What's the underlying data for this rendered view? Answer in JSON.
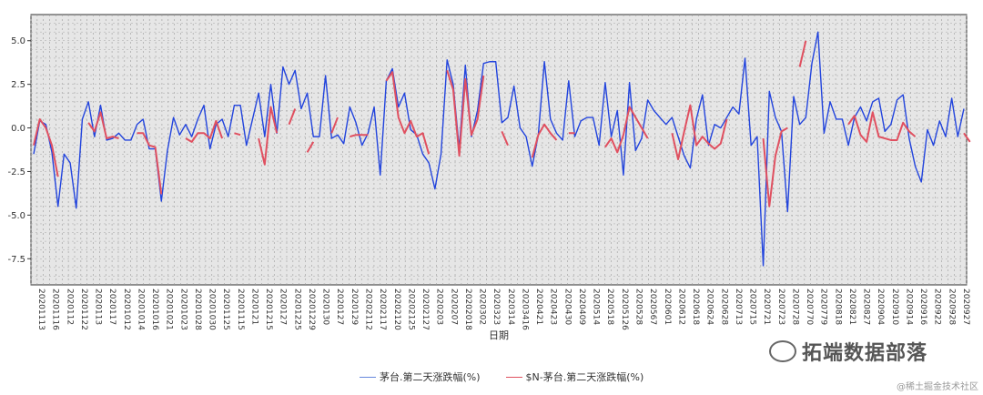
{
  "chart_data": {
    "type": "line",
    "xlabel": "日期",
    "ylabel": "",
    "ylim": [
      -9,
      6.5
    ],
    "yticks": [
      5.0,
      2.5,
      0.0,
      -2.5,
      -5.0,
      -7.5
    ],
    "ytick_labels": [
      "5.0",
      "2.5",
      "0.0",
      "-2.5",
      "-5.0",
      "-7.5"
    ],
    "tick_labels": [
      "20201113",
      "20201116",
      "2020112",
      "20201122",
      "2020113",
      "2020117",
      "20201012",
      "20201014",
      "20201016",
      "20201021",
      "20201023",
      "20201028",
      "20201030",
      "20201125",
      "20201115",
      "2020121",
      "20201215",
      "2020127",
      "20201225",
      "20201229",
      "2020130",
      "2020127",
      "2020129",
      "20202112",
      "20202117",
      "20202120",
      "20202125",
      "20202127",
      "2020203",
      "2020207",
      "20202018",
      "2020302",
      "2020323",
      "2020314",
      "20203416",
      "2020421",
      "2020423",
      "2020430",
      "2020409",
      "2020514",
      "2020518",
      "20205126",
      "2020528",
      "2020567",
      "2020601",
      "2020612",
      "2020618",
      "2020624",
      "2020628",
      "2020713",
      "2020715",
      "2020721",
      "2020723",
      "2020728",
      "2020770",
      "2020779",
      "2020818",
      "2020821",
      "2020827",
      "2020904",
      "2020910",
      "2020914",
      "2020916",
      "2020922",
      "2020928",
      "2020927"
    ],
    "grid": true,
    "legend_position": "bottom",
    "series": [
      {
        "name": "茅台.第二天涨跌幅(%)",
        "color": "#2244dd",
        "values": [
          -1.5,
          0.4,
          0.2,
          -1.4,
          -4.5,
          -1.5,
          -2.0,
          -4.6,
          0.5,
          1.5,
          -0.5,
          1.3,
          -0.7,
          -0.6,
          -0.3,
          -0.7,
          -0.7,
          0.2,
          0.5,
          -1.2,
          -1.2,
          -4.2,
          -1.3,
          0.6,
          -0.4,
          0.2,
          -0.5,
          0.5,
          1.3,
          -1.2,
          0.2,
          0.5,
          -0.5,
          1.3,
          1.3,
          -1.0,
          0.5,
          2.0,
          -0.5,
          2.5,
          -0.3,
          3.5,
          2.5,
          3.3,
          1.1,
          2.0,
          -0.5,
          -0.5,
          3.0,
          -0.6,
          -0.4,
          -0.9,
          1.2,
          0.3,
          -1.0,
          -0.3,
          1.2,
          -2.7,
          2.7,
          3.4,
          1.2,
          2.0,
          -0.1,
          -0.4,
          -1.5,
          -2.0,
          -3.5,
          -1.5,
          3.9,
          2.5,
          -1.2,
          3.6,
          -0.5,
          1.0,
          3.7,
          3.8,
          3.8,
          0.3,
          0.6,
          2.4,
          0.0,
          -0.5,
          -2.2,
          -0.4,
          3.8,
          0.5,
          -0.3,
          -0.7,
          2.7,
          -0.5,
          0.4,
          0.6,
          0.6,
          -1.0,
          2.6,
          -0.5,
          1.0,
          -2.7,
          2.6,
          -1.3,
          -0.6,
          1.6,
          1.0,
          0.6,
          0.2,
          0.6,
          -0.5,
          -1.6,
          -2.3,
          0.5,
          1.9,
          -1.0,
          0.2,
          0.0,
          0.6,
          1.2,
          0.8,
          4.0,
          -1.0,
          -0.5,
          -7.9,
          2.1,
          0.6,
          -0.2,
          -4.8,
          1.8,
          0.2,
          0.6,
          3.7,
          5.5,
          -0.3,
          1.5,
          0.5,
          0.5,
          -1.0,
          0.6,
          1.2,
          0.4,
          1.5,
          1.7,
          -0.2,
          0.2,
          1.6,
          1.9,
          -0.6,
          -2.2,
          -3.1,
          -0.1,
          -1.0,
          0.4,
          -0.5,
          1.7,
          -0.5,
          1.1
        ]
      },
      {
        "name": "$N-茅台.第二天涨跌幅(%)",
        "color": "#e05060",
        "values": [
          -1.0,
          0.5,
          0.0,
          -1.0,
          -2.8,
          null,
          null,
          null,
          null,
          0.3,
          -0.2,
          0.9,
          -0.6,
          -0.5,
          -0.6,
          null,
          null,
          -0.3,
          -0.3,
          -1.0,
          -1.1,
          -3.8,
          null,
          null,
          null,
          -0.6,
          -0.8,
          -0.3,
          -0.3,
          -0.6,
          0.4,
          -0.6,
          null,
          -0.3,
          -0.4,
          null,
          null,
          -0.6,
          -2.1,
          1.2,
          -0.3,
          null,
          0.2,
          1.1,
          null,
          -1.4,
          -0.8,
          null,
          null,
          -0.3,
          0.6,
          null,
          -0.5,
          -0.4,
          -0.4,
          -0.4,
          null,
          null,
          2.7,
          3.2,
          0.6,
          -0.3,
          0.4,
          -0.5,
          -0.3,
          -1.5,
          null,
          null,
          3.3,
          2.2,
          -1.6,
          2.8,
          -0.4,
          0.5,
          3.0,
          null,
          null,
          -0.2,
          -1.0,
          null,
          null,
          null,
          -1.7,
          -0.4,
          0.2,
          -0.3,
          -0.7,
          null,
          -0.3,
          -0.3,
          null,
          null,
          null,
          null,
          -1.1,
          -0.6,
          -1.4,
          -0.4,
          1.2,
          0.6,
          0.0,
          -0.6,
          null,
          null,
          null,
          -0.3,
          -1.8,
          -0.2,
          1.3,
          -1.0,
          -0.5,
          -0.9,
          -1.2,
          -0.9,
          0.5,
          null,
          null,
          null,
          null,
          null,
          -0.6,
          -4.5,
          -1.6,
          -0.2,
          0.0,
          null,
          3.5,
          5.0,
          null,
          null,
          null,
          null,
          null,
          null,
          0.2,
          0.7,
          -0.4,
          -0.8,
          0.9,
          -0.5,
          -0.6,
          -0.7,
          -0.7,
          0.3,
          -0.2,
          -0.5,
          null,
          null,
          null,
          null,
          null,
          null,
          null,
          -0.3,
          -0.8
        ]
      }
    ]
  },
  "watermark": {
    "text": "拓端数据部落",
    "icon": "wechat-icon",
    "sub": "@稀土掘金技术社区"
  }
}
